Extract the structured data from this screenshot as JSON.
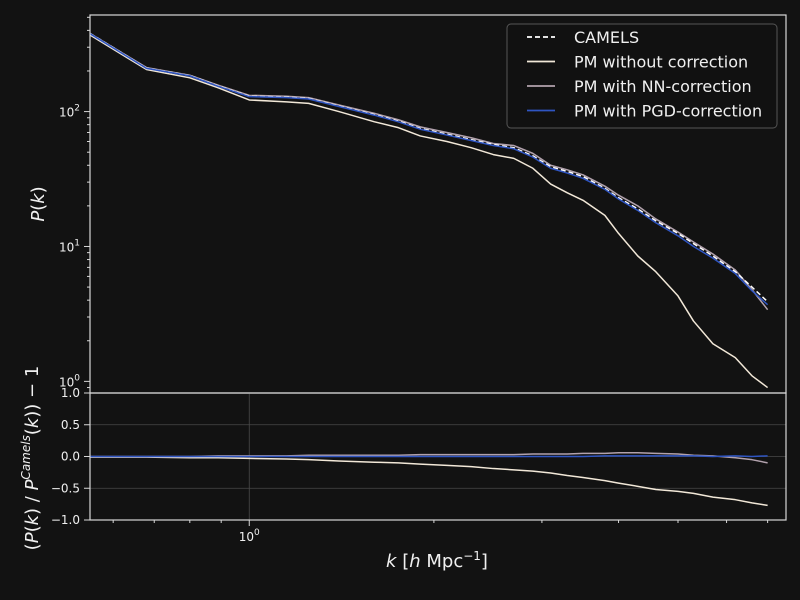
{
  "chart_data": [
    {
      "type": "line",
      "panel": "power-spectrum",
      "xscale": "log",
      "yscale": "log",
      "ylabel": "$P(k)$",
      "xlim": [
        0.55,
        7.5
      ],
      "ylim": [
        0.82,
        520
      ],
      "yticks": [
        1,
        10,
        100
      ],
      "yticklabels": [
        "10^0",
        "10^1",
        "10^2"
      ],
      "grid": false,
      "legend": "top-right",
      "x": [
        0.55,
        0.68,
        0.8,
        0.89,
        1.0,
        1.15,
        1.25,
        1.4,
        1.6,
        1.75,
        1.9,
        2.1,
        2.3,
        2.5,
        2.7,
        2.9,
        3.1,
        3.3,
        3.5,
        3.8,
        4.0,
        4.3,
        4.6,
        5.0,
        5.3,
        5.7,
        6.2,
        6.6,
        7.0
      ],
      "series": [
        {
          "name": "CAMELS",
          "color": "#ffffff",
          "dash": "dashed",
          "values": [
            380,
            210,
            185,
            155,
            130,
            128,
            125,
            110,
            95,
            85,
            75,
            68,
            62,
            57,
            54,
            47,
            39,
            36,
            33,
            27,
            23,
            19,
            15.5,
            12.5,
            10.5,
            8.5,
            6.5,
            5.0,
            3.9
          ]
        },
        {
          "name": "PM without correction",
          "color": "#f2e8d8",
          "dash": "solid",
          "values": [
            370,
            205,
            178,
            150,
            122,
            118,
            115,
            100,
            84,
            76,
            66,
            60,
            54,
            48,
            45,
            38,
            29,
            25,
            22,
            17,
            12.5,
            8.5,
            6.5,
            4.3,
            2.8,
            1.9,
            1.5,
            1.1,
            0.9
          ]
        },
        {
          "name": "PM with NN-correction",
          "color": "#b2a2ad",
          "dash": "solid",
          "values": [
            380,
            212,
            186,
            157,
            132,
            130,
            127,
            112,
            97,
            87,
            77,
            70,
            64,
            58,
            56,
            49,
            40,
            37,
            34,
            28,
            24,
            20,
            16,
            12.8,
            10.8,
            8.8,
            6.7,
            4.8,
            3.4
          ]
        },
        {
          "name": "PM with PGD-correction",
          "color": "#2f55c2",
          "dash": "solid",
          "values": [
            378,
            209,
            184,
            154,
            129,
            127,
            124,
            109,
            94,
            84,
            74,
            67,
            61,
            56,
            53,
            46,
            38,
            35,
            32,
            26.5,
            22.5,
            18.5,
            15,
            12,
            10,
            8.2,
            6.3,
            4.7,
            3.7
          ]
        }
      ]
    },
    {
      "type": "line",
      "panel": "residual",
      "xscale": "log",
      "xlabel": "$k$ [$h$ Mpc$^{-1}$]",
      "ylabel": "$(P(k)\\ /\\ P^{Camels}(k)) - 1$",
      "xticks": [
        1
      ],
      "xticklabels": [
        "10^0"
      ],
      "ylim": [
        -1.0,
        1.0
      ],
      "yticks": [
        -1.0,
        -0.5,
        0.0,
        0.5,
        1.0
      ],
      "yticklabels": [
        "−1.0",
        "−0.5",
        "0.0",
        "0.5",
        "1.0"
      ],
      "grid": true,
      "x": [
        0.55,
        0.68,
        0.8,
        0.89,
        1.0,
        1.15,
        1.25,
        1.4,
        1.6,
        1.75,
        1.9,
        2.1,
        2.3,
        2.5,
        2.7,
        2.9,
        3.1,
        3.3,
        3.5,
        3.8,
        4.0,
        4.3,
        4.6,
        5.0,
        5.3,
        5.7,
        6.2,
        6.6,
        7.0
      ],
      "series": [
        {
          "name": "PM without correction",
          "color": "#f2e8d8",
          "values": [
            -0.01,
            -0.01,
            -0.02,
            -0.02,
            -0.03,
            -0.04,
            -0.05,
            -0.07,
            -0.09,
            -0.1,
            -0.12,
            -0.14,
            -0.16,
            -0.19,
            -0.21,
            -0.23,
            -0.26,
            -0.3,
            -0.33,
            -0.38,
            -0.42,
            -0.47,
            -0.52,
            -0.55,
            -0.58,
            -0.64,
            -0.68,
            -0.73,
            -0.77
          ]
        },
        {
          "name": "PM with NN-correction",
          "color": "#b2a2ad",
          "values": [
            0.0,
            0.0,
            0.0,
            0.01,
            0.01,
            0.01,
            0.02,
            0.02,
            0.02,
            0.02,
            0.03,
            0.03,
            0.03,
            0.03,
            0.03,
            0.04,
            0.04,
            0.04,
            0.05,
            0.05,
            0.06,
            0.06,
            0.05,
            0.04,
            0.02,
            0.01,
            -0.02,
            -0.05,
            -0.1
          ]
        },
        {
          "name": "PM with PGD-correction",
          "color": "#2f55c2",
          "values": [
            0.0,
            0.0,
            0.0,
            0.0,
            0.0,
            0.0,
            0.0,
            0.0,
            0.0,
            0.0,
            0.0,
            0.0,
            0.0,
            0.0,
            0.0,
            0.0,
            0.0,
            0.0,
            0.0,
            0.01,
            0.01,
            0.01,
            0.01,
            0.01,
            0.01,
            0.0,
            0.01,
            0.0,
            0.01
          ]
        }
      ]
    }
  ]
}
